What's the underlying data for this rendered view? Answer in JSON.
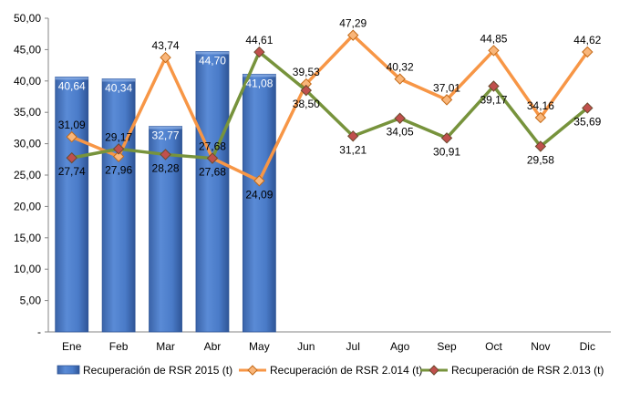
{
  "chart_data": {
    "type": "bar",
    "categories": [
      "Ene",
      "Feb",
      "Mar",
      "Abr",
      "May",
      "Jun",
      "Jul",
      "Ago",
      "Sep",
      "Oct",
      "Nov",
      "Dic"
    ],
    "y_ticks": [
      "-",
      "5,00",
      "10,00",
      "15,00",
      "20,00",
      "25,00",
      "30,00",
      "35,00",
      "40,00",
      "45,00",
      "50,00"
    ],
    "ylim": [
      0,
      50
    ],
    "grid": false,
    "legend_position": "bottom",
    "title": "",
    "xlabel": "",
    "ylabel": "",
    "series": [
      {
        "name": "Recuperación de RSR 2015 (t)",
        "type": "bar",
        "color": "#4472C4",
        "values": [
          40.64,
          40.34,
          32.77,
          44.7,
          41.08,
          null,
          null,
          null,
          null,
          null,
          null,
          null
        ],
        "labels": [
          "40,64",
          "40,34",
          "32,77",
          "44,70",
          "41,08",
          "",
          "",
          "",
          "",
          "",
          "",
          ""
        ]
      },
      {
        "name": "Recuperación de RSR 2.014 (t)",
        "type": "line",
        "color": "#F79646",
        "values": [
          31.09,
          27.96,
          43.74,
          27.68,
          24.09,
          39.53,
          47.29,
          40.32,
          37.01,
          44.85,
          34.16,
          44.62
        ],
        "labels": [
          "31,09",
          "27,96",
          "43,74",
          "27,68",
          "24,09",
          "39,53",
          "47,29",
          "40,32",
          "37,01",
          "44,85",
          "34,16",
          "44,62"
        ]
      },
      {
        "name": "Recuperación de RSR 2.013 (t)",
        "type": "line",
        "color": "#77933C",
        "values": [
          27.74,
          29.17,
          28.28,
          27.68,
          44.61,
          38.5,
          31.21,
          34.05,
          30.91,
          39.17,
          29.58,
          35.69
        ],
        "labels": [
          "27,74",
          "29,17",
          "28,28",
          "27,68",
          "44,61",
          "38,50",
          "31,21",
          "34,05",
          "30,91",
          "39,17",
          "29,58",
          "35,69"
        ]
      }
    ]
  }
}
